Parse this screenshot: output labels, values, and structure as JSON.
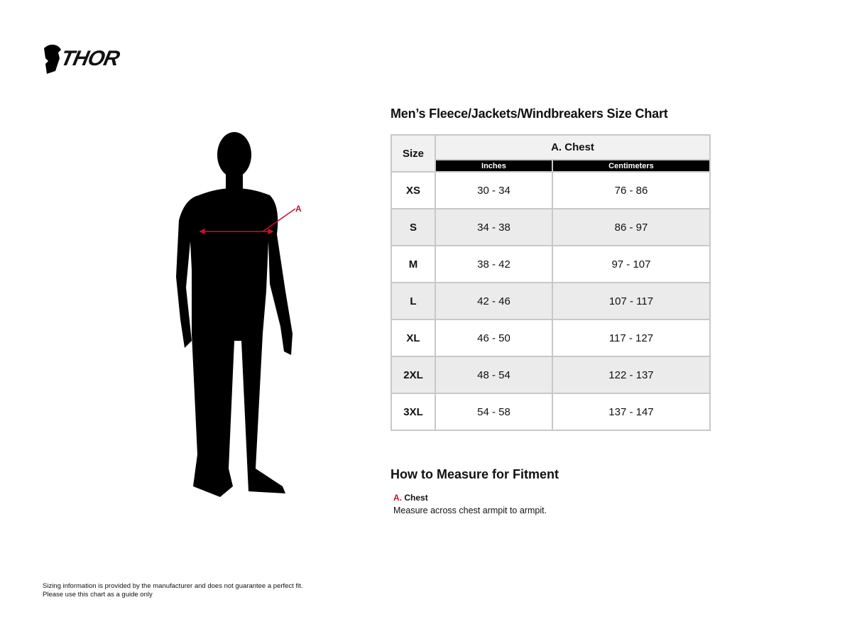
{
  "brand": {
    "logo_text": "THOR"
  },
  "figure": {
    "marker_label": "A",
    "accent_color": "#c8102e"
  },
  "chart_title": "Men’s Fleece/Jackets/Windbreakers Size Chart",
  "table": {
    "size_header": "Size",
    "group_header": "A. Chest",
    "sub_headers": [
      "Inches",
      "Centimeters"
    ],
    "rows": [
      {
        "size": "XS",
        "inches": "30 - 34",
        "cm": "76 - 86"
      },
      {
        "size": "S",
        "inches": "34 - 38",
        "cm": "86 - 97"
      },
      {
        "size": "M",
        "inches": "38 - 42",
        "cm": "97 - 107"
      },
      {
        "size": "L",
        "inches": "42 - 46",
        "cm": "107 - 117"
      },
      {
        "size": "XL",
        "inches": "46 - 50",
        "cm": "117 - 127"
      },
      {
        "size": "2XL",
        "inches": "48 - 54",
        "cm": "122 - 137"
      },
      {
        "size": "3XL",
        "inches": "54 - 58",
        "cm": "137 - 147"
      }
    ]
  },
  "measure": {
    "title": "How to Measure for Fitment",
    "letter": "A.",
    "label": "Chest",
    "description": "Measure across chest armpit to armpit."
  },
  "disclaimer": [
    "Sizing information is provided by the manufacturer and does not guarantee a perfect fit.",
    "Please use this chart as a guide only"
  ]
}
